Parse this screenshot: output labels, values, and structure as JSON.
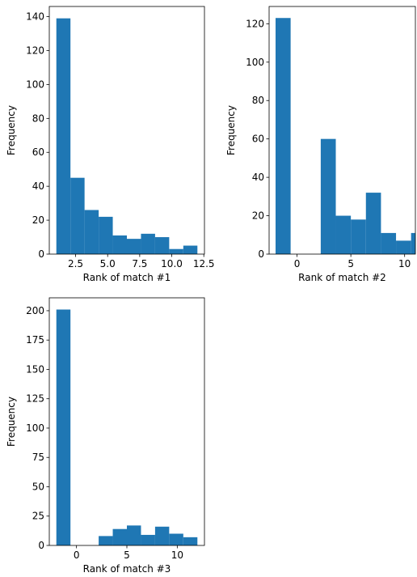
{
  "chart_data": [
    {
      "type": "histogram",
      "xlabel": "Rank of match #1",
      "ylabel": "Frequency",
      "color": "#1f77b4",
      "bins": [
        1,
        2.1,
        3.2,
        4.3,
        5.4,
        6.5,
        7.6,
        8.7,
        9.8,
        10.9,
        12
      ],
      "counts": [
        139,
        45,
        26,
        22,
        11,
        9,
        12,
        10,
        3,
        5
      ],
      "xlim": [
        0.45,
        12.55
      ],
      "xticks": [
        2.5,
        {
          "value": 5,
          "label": "5.0"
        },
        7.5,
        {
          "value": 10,
          "label": "10.0"
        },
        12.5
      ],
      "ylim": [
        0,
        146
      ],
      "yticks": [
        0,
        20,
        40,
        60,
        80,
        100,
        120,
        140
      ]
    },
    {
      "type": "histogram",
      "xlabel": "Rank of match #2",
      "ylabel": "Frequency",
      "color": "#1f77b4",
      "bins": [
        -2,
        -0.6,
        0.8,
        2.2,
        3.6,
        5,
        6.4,
        7.8,
        9.2,
        10.6,
        12
      ],
      "counts": [
        123,
        0,
        0,
        60,
        20,
        18,
        32,
        11,
        7,
        11
      ],
      "xlim": [
        -2.6,
        11
      ],
      "xticks": [
        0,
        5,
        10
      ],
      "ylim": [
        0,
        129
      ],
      "yticks": [
        0,
        20,
        40,
        60,
        80,
        100,
        120
      ]
    },
    {
      "type": "histogram",
      "xlabel": "Rank of match #3",
      "ylabel": "Frequency",
      "color": "#1f77b4",
      "bins": [
        -2,
        -0.6,
        0.8,
        2.2,
        3.6,
        5,
        6.4,
        7.8,
        9.2,
        10.6,
        12
      ],
      "counts": [
        201,
        0,
        0,
        8,
        14,
        17,
        9,
        16,
        10,
        7
      ],
      "xlim": [
        -2.7,
        12.7
      ],
      "xticks": [
        0,
        5,
        10
      ],
      "ylim": [
        0,
        211
      ],
      "yticks": [
        0,
        25,
        50,
        75,
        100,
        125,
        150,
        175,
        200
      ]
    }
  ]
}
